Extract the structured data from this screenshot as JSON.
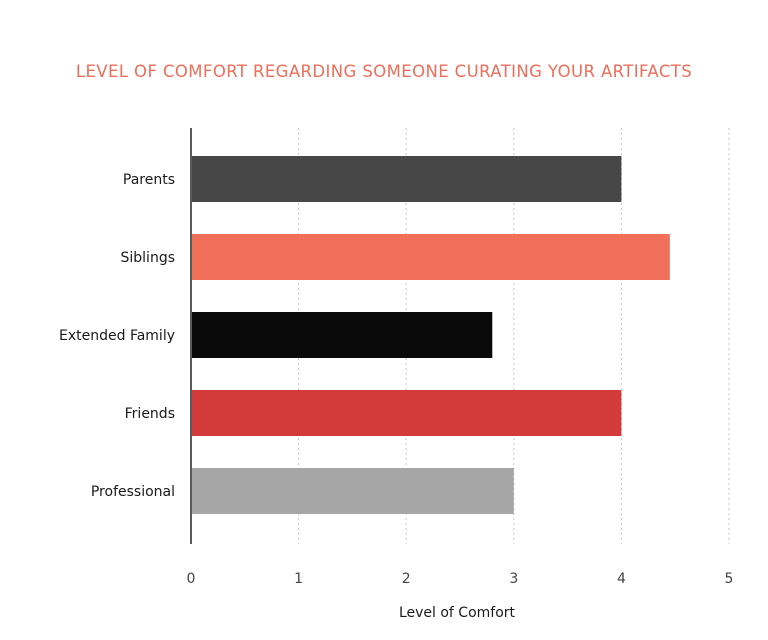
{
  "chart_data": {
    "type": "bar",
    "orientation": "horizontal",
    "title": "LEVEL OF COMFORT REGARDING SOMEONE CURATING YOUR ARTIFACTS",
    "xlabel": "Level of Comfort",
    "ylabel": "",
    "categories": [
      "Parents",
      "Siblings",
      "Extended Family",
      "Friends",
      "Professional"
    ],
    "values": [
      4.0,
      4.45,
      2.8,
      4.0,
      3.0
    ],
    "bar_colors": [
      "#474747",
      "#f07059",
      "#0a0a0a",
      "#d33b3b",
      "#a6a6a6"
    ],
    "xlim": [
      0,
      5
    ],
    "xticks": [
      "0",
      "1",
      "2",
      "3",
      "4",
      "5"
    ],
    "grid": "vertical dotted",
    "legend": "none",
    "title_color": "#ee6e59"
  }
}
